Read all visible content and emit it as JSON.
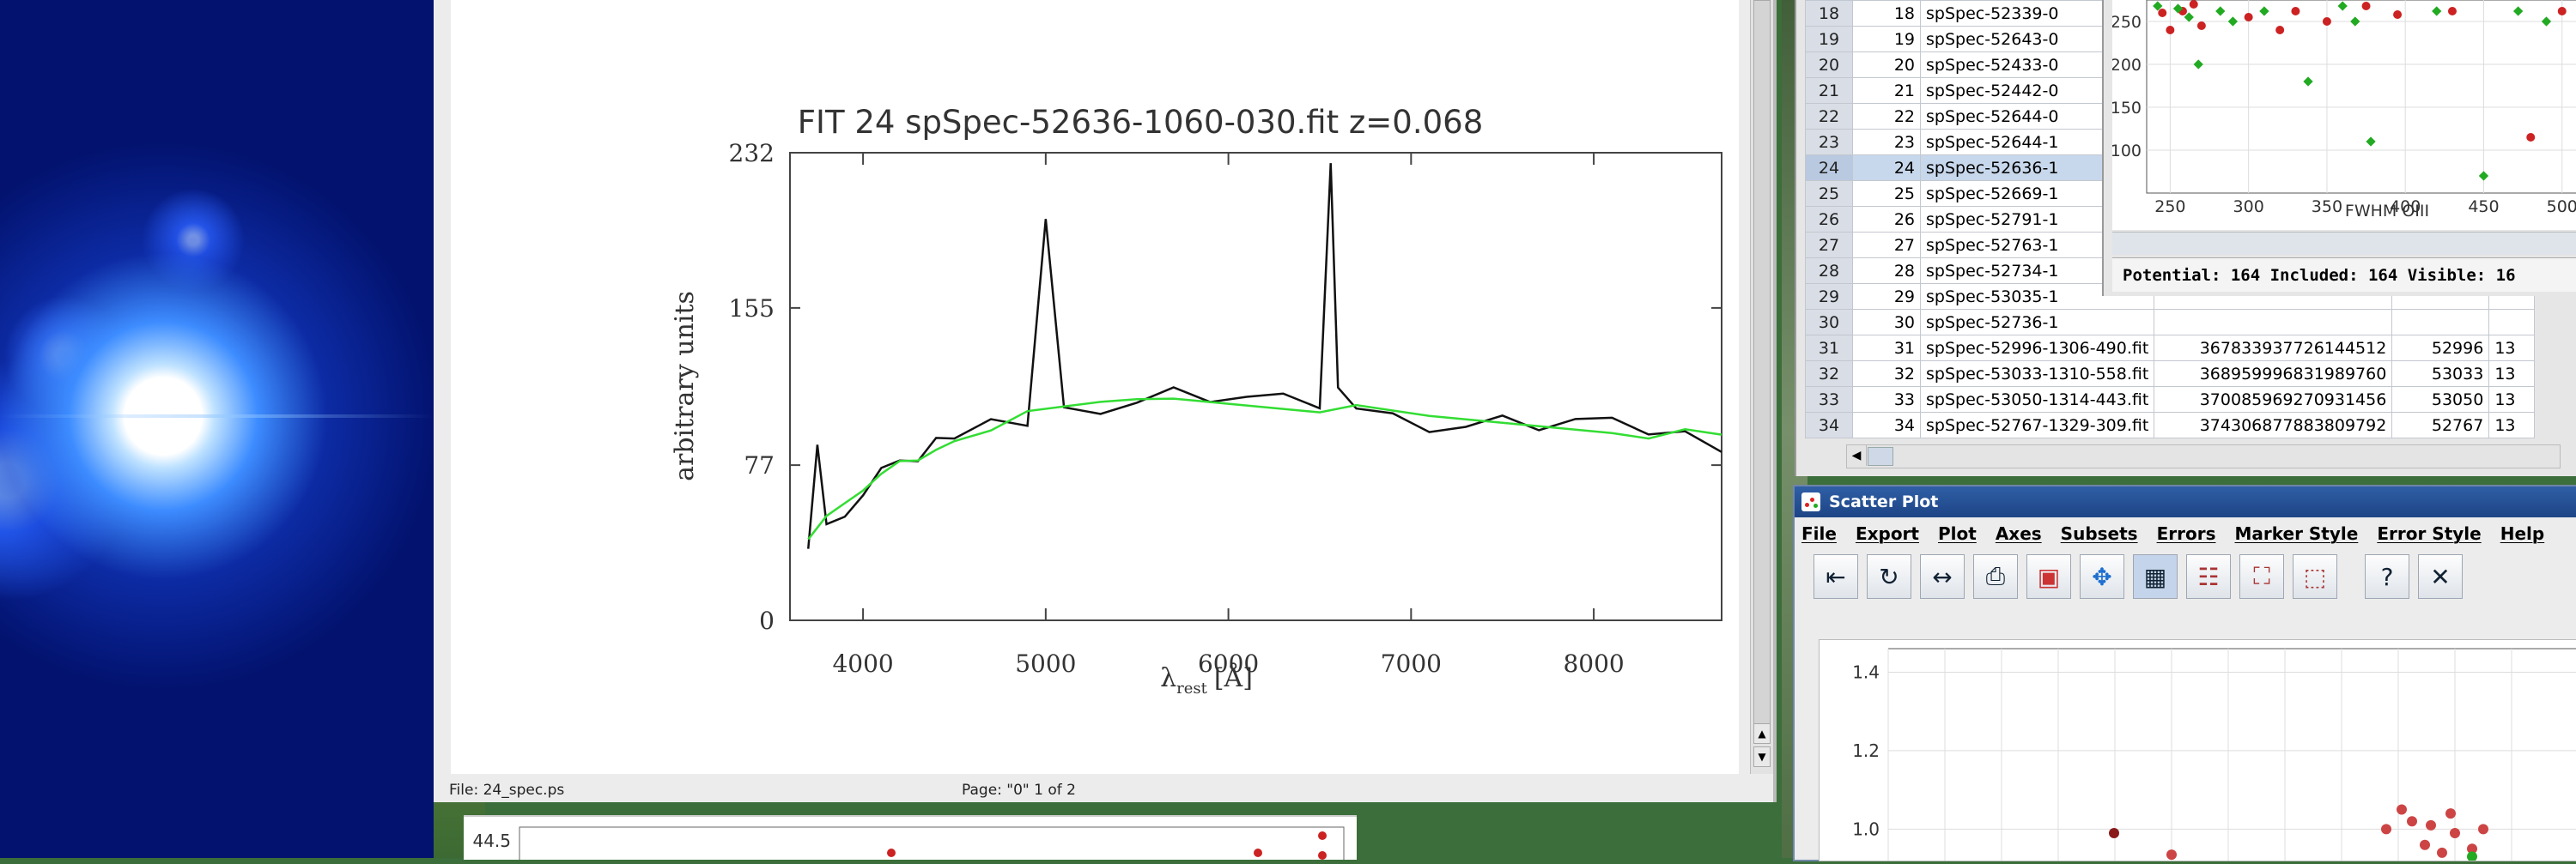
{
  "viewer": {
    "plot_title": "FIT 24 spSpec-52636-1060-030.fit z=0.068",
    "ylabel": "arbitrary units",
    "xlabel_main": "λ",
    "xlabel_sub": "rest",
    "xlabel_unit": "[Å]",
    "yticks": [
      "232",
      "155",
      "77",
      "0"
    ],
    "xticks": [
      "4000",
      "5000",
      "6000",
      "7000",
      "8000"
    ],
    "status_file": "File: 24_spec.ps",
    "status_page": "Page: \"0\"  1 of 2",
    "lower_plot_ytick": "44.5"
  },
  "table": {
    "rows": [
      {
        "n": "18",
        "idx": "18",
        "name": "spSpec-52339-0",
        "id": "",
        "mjd": "",
        "plate": "",
        "sel": false
      },
      {
        "n": "19",
        "idx": "19",
        "name": "spSpec-52643-0",
        "id": "",
        "mjd": "",
        "plate": "",
        "sel": false
      },
      {
        "n": "20",
        "idx": "20",
        "name": "spSpec-52433-0",
        "id": "",
        "mjd": "",
        "plate": "",
        "sel": false
      },
      {
        "n": "21",
        "idx": "21",
        "name": "spSpec-52442-0",
        "id": "",
        "mjd": "",
        "plate": "",
        "sel": false
      },
      {
        "n": "22",
        "idx": "22",
        "name": "spSpec-52644-0",
        "id": "",
        "mjd": "",
        "plate": "",
        "sel": false
      },
      {
        "n": "23",
        "idx": "23",
        "name": "spSpec-52644-1",
        "id": "",
        "mjd": "",
        "plate": "",
        "sel": false
      },
      {
        "n": "24",
        "idx": "24",
        "name": "spSpec-52636-1",
        "id": "",
        "mjd": "",
        "plate": "",
        "sel": true
      },
      {
        "n": "25",
        "idx": "25",
        "name": "spSpec-52669-1",
        "id": "",
        "mjd": "",
        "plate": "",
        "sel": false
      },
      {
        "n": "26",
        "idx": "26",
        "name": "spSpec-52791-1",
        "id": "",
        "mjd": "",
        "plate": "",
        "sel": false
      },
      {
        "n": "27",
        "idx": "27",
        "name": "spSpec-52763-1",
        "id": "",
        "mjd": "",
        "plate": "",
        "sel": false
      },
      {
        "n": "28",
        "idx": "28",
        "name": "spSpec-52734-1",
        "id": "",
        "mjd": "",
        "plate": "",
        "sel": false
      },
      {
        "n": "29",
        "idx": "29",
        "name": "spSpec-53035-1",
        "id": "",
        "mjd": "",
        "plate": "",
        "sel": false
      },
      {
        "n": "30",
        "idx": "30",
        "name": "spSpec-52736-1",
        "id": "",
        "mjd": "",
        "plate": "",
        "sel": false
      },
      {
        "n": "31",
        "idx": "31",
        "name": "spSpec-52996-1306-490.fit",
        "id": "367833937726144512",
        "mjd": "52996",
        "plate": "13",
        "sel": false
      },
      {
        "n": "32",
        "idx": "32",
        "name": "spSpec-53033-1310-558.fit",
        "id": "368959996831989760",
        "mjd": "53033",
        "plate": "13",
        "sel": false
      },
      {
        "n": "33",
        "idx": "33",
        "name": "spSpec-53050-1314-443.fit",
        "id": "370085969270931456",
        "mjd": "53050",
        "plate": "13",
        "sel": false
      },
      {
        "n": "34",
        "idx": "34",
        "name": "spSpec-52767-1329-309.fit",
        "id": "374306877883809792",
        "mjd": "52767",
        "plate": "13",
        "sel": false
      }
    ]
  },
  "miniplot": {
    "yticks": [
      "250",
      "200",
      "150",
      "100"
    ],
    "xticks": [
      "250",
      "300",
      "350",
      "400",
      "450",
      "500"
    ],
    "xlabel": "FWHM OIII",
    "potential_text": "Potential: 164  Included: 164  Visible: 16"
  },
  "scatter": {
    "title": "Scatter Plot",
    "menu": [
      "File",
      "Export",
      "Plot",
      "Axes",
      "Subsets",
      "Errors",
      "Marker Style",
      "Error Style",
      "Help"
    ],
    "toolbar_icons": [
      "rescale-icon",
      "replot-icon",
      "axis-range-icon",
      "print-icon",
      "export-image-icon",
      "move-icon",
      "grid-icon",
      "legend-icon",
      "subset-icon",
      "draw-subset-icon",
      "help-icon",
      "close-icon"
    ],
    "yticks": [
      "1.4",
      "1.2",
      "1.0"
    ]
  },
  "colors": {
    "red_marker": "#cc2222",
    "green_marker": "#22aa22",
    "title_blue": "#1d4485",
    "spectrum_fit": "#33dd33"
  },
  "chart_data": {
    "type": "line",
    "title": "FIT 24 spSpec-52636-1060-030.fit z=0.068",
    "xlabel": "λrest [Å]",
    "ylabel": "arbitrary units",
    "xlim": [
      3600,
      8700
    ],
    "ylim": [
      0,
      232
    ],
    "series": [
      {
        "x": [
          3700,
          3750,
          3800,
          3900,
          4000,
          4100,
          4200,
          4300,
          4400,
          4500,
          4700,
          4900,
          5000,
          5100,
          5300,
          5500,
          5700,
          5900,
          6100,
          6300,
          6500,
          6560,
          6600,
          6700,
          6900,
          7100,
          7300,
          7500,
          7700,
          7900,
          8100,
          8300,
          8500,
          8700
        ],
        "values": [
          40,
          88,
          45,
          55,
          62,
          72,
          82,
          78,
          86,
          92,
          98,
          101,
          200,
          103,
          106,
          108,
          112,
          111,
          110,
          108,
          107,
          225,
          120,
          106,
          100,
          97,
          96,
          98,
          97,
          99,
          96,
          94,
          92,
          88
        ]
      },
      {
        "x": [
          3700,
          3800,
          3900,
          4000,
          4100,
          4200,
          4300,
          4400,
          4500,
          4700,
          4900,
          5100,
          5300,
          5500,
          5700,
          5900,
          6100,
          6300,
          6500,
          6700,
          6900,
          7100,
          7300,
          7500,
          7700,
          7900,
          8100,
          8300,
          8500,
          8700
        ],
        "values": [
          43,
          49,
          56,
          63,
          72,
          79,
          80,
          86,
          91,
          97,
          101,
          104,
          107,
          109,
          110,
          109,
          108,
          107,
          106,
          104,
          102,
          100,
          99,
          98,
          97,
          96,
          95,
          93,
          92,
          90
        ]
      }
    ]
  }
}
